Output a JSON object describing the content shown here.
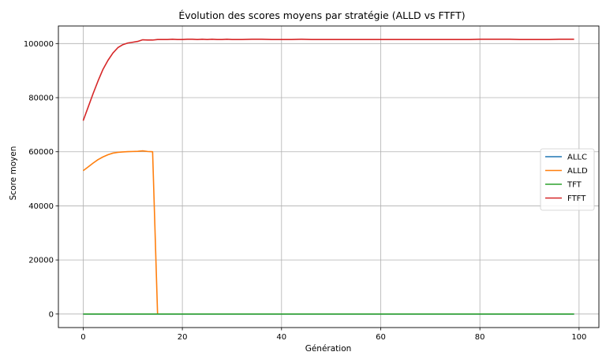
{
  "chart_data": {
    "type": "line",
    "title": "Évolution des scores moyens par stratégie (ALLD vs FTFT)",
    "xlabel": "Génération",
    "ylabel": "Score moyen",
    "xlim": [
      -5,
      104
    ],
    "ylim": [
      -5000,
      106500
    ],
    "xticks": [
      0,
      20,
      40,
      60,
      80,
      100
    ],
    "yticks": [
      0,
      20000,
      40000,
      60000,
      80000,
      100000
    ],
    "xtick_labels": [
      "0",
      "20",
      "40",
      "60",
      "80",
      "100"
    ],
    "ytick_labels": [
      "0",
      "20000",
      "40000",
      "60000",
      "80000",
      "100000"
    ],
    "grid": true,
    "legend_position": "center-right",
    "series": [
      {
        "name": "ALLC",
        "color": "#1f77b4",
        "x": [
          0,
          99
        ],
        "y": [
          0,
          0
        ]
      },
      {
        "name": "ALLD",
        "color": "#ff7f0e",
        "x": [
          0,
          1,
          2,
          3,
          4,
          5,
          6,
          7,
          8,
          9,
          10,
          11,
          12,
          13,
          14,
          15
        ],
        "y": [
          53000,
          54400,
          55800,
          57100,
          58100,
          58900,
          59500,
          59800,
          59950,
          60050,
          60100,
          60150,
          60350,
          60100,
          60000,
          0
        ]
      },
      {
        "name": "TFT",
        "color": "#2ca02c",
        "x": [
          0,
          99
        ],
        "y": [
          0,
          0
        ]
      },
      {
        "name": "FTFT",
        "color": "#d62728",
        "x": [
          0,
          1,
          2,
          3,
          4,
          5,
          6,
          7,
          8,
          9,
          10,
          11,
          12,
          13,
          14,
          15,
          16,
          17,
          18,
          19,
          20,
          21,
          22,
          23,
          24,
          25,
          26,
          27,
          28,
          29,
          30,
          32,
          34,
          36,
          38,
          40,
          42,
          44,
          46,
          48,
          50,
          52,
          54,
          56,
          58,
          60,
          62,
          64,
          66,
          68,
          70,
          72,
          74,
          76,
          78,
          80,
          82,
          84,
          86,
          88,
          90,
          92,
          94,
          96,
          98,
          99
        ],
        "y": [
          71500,
          76500,
          81500,
          86200,
          90500,
          93800,
          96500,
          98500,
          99600,
          100200,
          100500,
          100800,
          101400,
          101300,
          101300,
          101500,
          101500,
          101500,
          101600,
          101500,
          101500,
          101600,
          101600,
          101500,
          101600,
          101500,
          101600,
          101500,
          101500,
          101600,
          101500,
          101500,
          101600,
          101600,
          101500,
          101500,
          101500,
          101600,
          101500,
          101500,
          101500,
          101500,
          101500,
          101500,
          101500,
          101500,
          101500,
          101500,
          101500,
          101500,
          101500,
          101500,
          101500,
          101500,
          101500,
          101600,
          101600,
          101600,
          101600,
          101500,
          101500,
          101500,
          101500,
          101600,
          101600,
          101600
        ]
      }
    ]
  }
}
